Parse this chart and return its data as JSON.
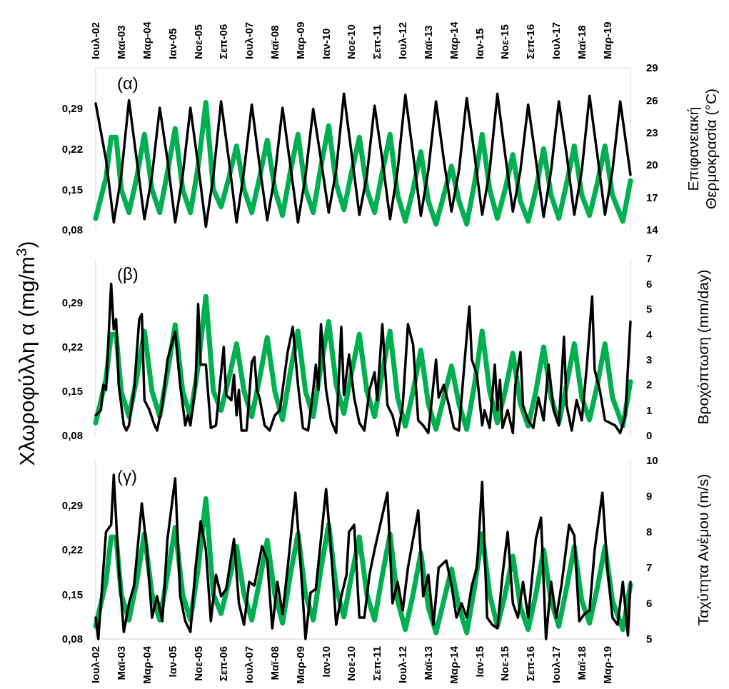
{
  "chart_data": [
    {
      "type": "line",
      "title": "(α)",
      "y2label": "Επιφανειακή Θερμοκρασία (°C)",
      "xlim": [
        "2002-07",
        "2019-12"
      ],
      "xticks": [
        {
          "value": "2002-07",
          "label": "Ιουλ-02"
        },
        {
          "value": "2003-05",
          "label": "Μαϊ-03"
        },
        {
          "value": "2004-03",
          "label": "Μαρ-04"
        },
        {
          "value": "2005-01",
          "label": "Ιαν-05"
        },
        {
          "value": "2005-11",
          "label": "Νοε-05"
        },
        {
          "value": "2006-09",
          "label": "Σεπ-06"
        },
        {
          "value": "2007-07",
          "label": "Ιουλ-07"
        },
        {
          "value": "2008-05",
          "label": "Μαϊ-08"
        },
        {
          "value": "2009-03",
          "label": "Μαρ-09"
        },
        {
          "value": "2010-01",
          "label": "Ιαν-10"
        },
        {
          "value": "2010-11",
          "label": "Νοε-10"
        },
        {
          "value": "2011-09",
          "label": "Σεπ-11"
        },
        {
          "value": "2012-07",
          "label": "Ιουλ-12"
        },
        {
          "value": "2013-05",
          "label": "Μαϊ-13"
        },
        {
          "value": "2014-03",
          "label": "Μαρ-14"
        },
        {
          "value": "2015-01",
          "label": "Ιαν-15"
        },
        {
          "value": "2015-11",
          "label": "Νοε-15"
        },
        {
          "value": "2016-09",
          "label": "Σεπ-16"
        },
        {
          "value": "2017-07",
          "label": "Ιουλ-17"
        },
        {
          "value": "2018-05",
          "label": "Μαϊ-18"
        },
        {
          "value": "2019-03",
          "label": "Μαρ-19"
        }
      ],
      "ylim": [
        0.08,
        0.36
      ],
      "yticks": [
        {
          "value": 0.08,
          "label": "0,08"
        },
        {
          "value": 0.15,
          "label": "0,15"
        },
        {
          "value": 0.22,
          "label": "0,22"
        },
        {
          "value": 0.29,
          "label": "0,29"
        }
      ],
      "y2lim": [
        14,
        29
      ],
      "y2ticks": [
        14,
        17,
        20,
        23,
        26,
        29
      ],
      "series": [
        {
          "color": "#00b050",
          "x": [
            "2002-07",
            "2002-11",
            "2003-01",
            "2003-03",
            "2003-05",
            "2003-08",
            "2003-11",
            "2004-02",
            "2004-05",
            "2004-08",
            "2004-11",
            "2005-02",
            "2005-05",
            "2005-08",
            "2005-11",
            "2006-02",
            "2006-05",
            "2006-08",
            "2006-11",
            "2007-02",
            "2007-05",
            "2007-08",
            "2007-11",
            "2008-02",
            "2008-05",
            "2008-08",
            "2008-11",
            "2009-02",
            "2009-05",
            "2009-08",
            "2009-11",
            "2010-02",
            "2010-05",
            "2010-08",
            "2010-11",
            "2011-02",
            "2011-05",
            "2011-08",
            "2011-11",
            "2012-02",
            "2012-05",
            "2012-08",
            "2012-11",
            "2013-02",
            "2013-05",
            "2013-08",
            "2013-11",
            "2014-02",
            "2014-05",
            "2014-08",
            "2014-11",
            "2015-02",
            "2015-05",
            "2015-08",
            "2015-11",
            "2016-02",
            "2016-05",
            "2016-08",
            "2016-11",
            "2017-02",
            "2017-05",
            "2017-08",
            "2017-11",
            "2018-02",
            "2018-05",
            "2018-08",
            "2018-11",
            "2019-02",
            "2019-05",
            "2019-09",
            "2019-12"
          ],
          "values": [
            0.1,
            0.17,
            0.24,
            0.24,
            0.15,
            0.11,
            0.17,
            0.245,
            0.15,
            0.11,
            0.18,
            0.255,
            0.15,
            0.11,
            0.19,
            0.3,
            0.15,
            0.12,
            0.17,
            0.225,
            0.15,
            0.11,
            0.17,
            0.235,
            0.15,
            0.105,
            0.18,
            0.245,
            0.15,
            0.11,
            0.19,
            0.26,
            0.16,
            0.115,
            0.18,
            0.24,
            0.15,
            0.11,
            0.18,
            0.245,
            0.14,
            0.095,
            0.15,
            0.215,
            0.13,
            0.09,
            0.14,
            0.19,
            0.13,
            0.09,
            0.16,
            0.245,
            0.15,
            0.1,
            0.15,
            0.21,
            0.13,
            0.095,
            0.15,
            0.22,
            0.14,
            0.1,
            0.16,
            0.225,
            0.14,
            0.105,
            0.16,
            0.225,
            0.14,
            0.095,
            0.165
          ]
        },
        {
          "color": "#000000",
          "axis": "y2",
          "x": [
            "2002-07",
            "2002-11",
            "2003-02",
            "2003-05",
            "2003-08",
            "2003-11",
            "2004-02",
            "2004-05",
            "2004-08",
            "2004-11",
            "2005-02",
            "2005-05",
            "2005-08",
            "2005-11",
            "2006-02",
            "2006-05",
            "2006-08",
            "2006-11",
            "2007-02",
            "2007-05",
            "2007-08",
            "2007-11",
            "2008-02",
            "2008-05",
            "2008-08",
            "2008-11",
            "2009-02",
            "2009-05",
            "2009-08",
            "2009-11",
            "2010-02",
            "2010-05",
            "2010-08",
            "2010-11",
            "2011-02",
            "2011-05",
            "2011-08",
            "2011-11",
            "2012-02",
            "2012-05",
            "2012-08",
            "2012-11",
            "2013-02",
            "2013-05",
            "2013-08",
            "2013-11",
            "2014-02",
            "2014-05",
            "2014-08",
            "2014-11",
            "2015-02",
            "2015-05",
            "2015-08",
            "2015-11",
            "2016-02",
            "2016-05",
            "2016-08",
            "2016-11",
            "2017-02",
            "2017-05",
            "2017-08",
            "2017-11",
            "2018-02",
            "2018-05",
            "2018-08",
            "2018-11",
            "2019-02",
            "2019-05",
            "2019-08",
            "2019-12"
          ],
          "values": [
            25.7,
            20.5,
            14.7,
            19,
            26.0,
            20.5,
            15.0,
            19,
            25.3,
            20.5,
            14.7,
            19,
            25.3,
            20,
            14.3,
            19,
            25.9,
            20.5,
            14.7,
            19.5,
            25.6,
            20,
            14.9,
            19,
            25.3,
            20,
            14.7,
            19,
            25.2,
            20.5,
            15.6,
            19.5,
            26.6,
            21,
            15.4,
            19,
            25.5,
            20.5,
            15.0,
            19.5,
            26.5,
            21,
            15.3,
            19.5,
            25.9,
            20.5,
            15.7,
            19.5,
            26.2,
            21,
            15.4,
            19.5,
            26.6,
            21,
            15.7,
            19.5,
            25.6,
            20.5,
            15.2,
            19.5,
            25.9,
            21,
            15.4,
            19.5,
            26.4,
            21,
            15.4,
            19.5,
            25.9,
            19.1
          ]
        }
      ]
    },
    {
      "type": "line",
      "title": "(β)",
      "ylabel": "Χλωροφύλλη α (mg/m$^{3}$)",
      "y2label": "Βροχόπτωση (mm/day)",
      "tick_labels": "y",
      "xlim": [
        "2002-07",
        "2019-12"
      ],
      "ylim": [
        0.08,
        0.36
      ],
      "yticks": [
        {
          "value": 0.08,
          "label": "0,08"
        },
        {
          "value": 0.15,
          "label": "0,15"
        },
        {
          "value": 0.22,
          "label": "0,22"
        },
        {
          "value": 0.29,
          "label": "0,29"
        }
      ],
      "y2lim": [
        0,
        7
      ],
      "y2ticks": [
        0,
        1,
        2,
        3,
        4,
        5,
        6,
        7
      ],
      "series": [
        {
          "color": "#00b050",
          "x": [
            "2002-07",
            "2002-11",
            "2003-01",
            "2003-03",
            "2003-05",
            "2003-08",
            "2003-11",
            "2004-02",
            "2004-05",
            "2004-08",
            "2004-11",
            "2005-02",
            "2005-05",
            "2005-08",
            "2005-11",
            "2006-02",
            "2006-05",
            "2006-08",
            "2006-11",
            "2007-02",
            "2007-05",
            "2007-08",
            "2007-11",
            "2008-02",
            "2008-05",
            "2008-08",
            "2008-11",
            "2009-02",
            "2009-05",
            "2009-08",
            "2009-11",
            "2010-02",
            "2010-05",
            "2010-08",
            "2010-11",
            "2011-02",
            "2011-05",
            "2011-08",
            "2011-11",
            "2012-02",
            "2012-05",
            "2012-08",
            "2012-11",
            "2013-02",
            "2013-05",
            "2013-08",
            "2013-11",
            "2014-02",
            "2014-05",
            "2014-08",
            "2014-11",
            "2015-02",
            "2015-05",
            "2015-08",
            "2015-11",
            "2016-02",
            "2016-05",
            "2016-08",
            "2016-11",
            "2017-02",
            "2017-05",
            "2017-08",
            "2017-11",
            "2018-02",
            "2018-05",
            "2018-08",
            "2018-11",
            "2019-02",
            "2019-05",
            "2019-09",
            "2019-12"
          ],
          "values": [
            0.1,
            0.17,
            0.24,
            0.24,
            0.15,
            0.11,
            0.17,
            0.245,
            0.15,
            0.11,
            0.18,
            0.255,
            0.15,
            0.11,
            0.19,
            0.3,
            0.15,
            0.12,
            0.17,
            0.225,
            0.15,
            0.11,
            0.17,
            0.235,
            0.15,
            0.105,
            0.18,
            0.245,
            0.15,
            0.11,
            0.19,
            0.26,
            0.16,
            0.115,
            0.18,
            0.24,
            0.15,
            0.11,
            0.18,
            0.245,
            0.14,
            0.095,
            0.15,
            0.215,
            0.13,
            0.09,
            0.14,
            0.19,
            0.13,
            0.09,
            0.16,
            0.245,
            0.15,
            0.1,
            0.15,
            0.21,
            0.13,
            0.095,
            0.15,
            0.22,
            0.14,
            0.1,
            0.16,
            0.225,
            0.14,
            0.105,
            0.16,
            0.225,
            0.14,
            0.095,
            0.165
          ]
        },
        {
          "color": "#000000",
          "axis": "y2",
          "x": [
            "2002-07",
            "2002-09",
            "2002-10",
            "2002-11",
            "2003-01",
            "2003-02",
            "2003-03",
            "2003-04",
            "2003-06",
            "2003-07",
            "2003-08",
            "2003-10",
            "2003-12",
            "2004-01",
            "2004-02",
            "2004-04",
            "2004-06",
            "2004-07",
            "2004-09",
            "2004-11",
            "2005-02",
            "2005-04",
            "2005-06",
            "2005-07",
            "2005-08",
            "2005-10",
            "2005-11",
            "2005-12",
            "2006-02",
            "2006-04",
            "2006-06",
            "2006-09",
            "2006-10",
            "2006-12",
            "2007-01",
            "2007-02",
            "2007-03",
            "2007-04",
            "2007-06",
            "2007-08",
            "2007-09",
            "2007-10",
            "2007-11",
            "2008-01",
            "2008-03",
            "2008-05",
            "2008-07",
            "2008-10",
            "2008-12",
            "2009-02",
            "2009-04",
            "2009-06",
            "2009-08",
            "2009-09",
            "2009-10",
            "2009-11",
            "2010-01",
            "2010-03",
            "2010-05",
            "2010-07",
            "2010-08",
            "2010-10",
            "2010-12",
            "2011-02",
            "2011-04",
            "2011-06",
            "2011-08",
            "2011-09",
            "2011-11",
            "2012-01",
            "2012-03",
            "2012-05",
            "2012-07",
            "2012-09",
            "2012-11",
            "2013-01",
            "2013-03",
            "2013-05",
            "2013-08",
            "2013-09",
            "2013-11",
            "2014-01",
            "2014-03",
            "2014-05",
            "2014-07",
            "2014-09",
            "2014-10",
            "2014-12",
            "2015-02",
            "2015-03",
            "2015-05",
            "2015-07",
            "2015-08",
            "2015-09",
            "2015-10",
            "2015-12",
            "2016-02",
            "2016-03",
            "2016-05",
            "2016-06",
            "2016-08",
            "2016-10",
            "2016-12",
            "2017-02",
            "2017-04",
            "2017-06",
            "2017-08",
            "2017-10",
            "2017-11",
            "2018-01",
            "2018-03",
            "2018-05",
            "2018-07",
            "2018-09",
            "2018-10",
            "2018-12",
            "2019-02",
            "2019-04",
            "2019-06",
            "2019-08",
            "2019-10",
            "2019-12"
          ],
          "values": [
            0.8,
            1.0,
            2.0,
            1.8,
            6.0,
            4.2,
            4.6,
            2.0,
            0.4,
            0.2,
            0.4,
            1.8,
            4.6,
            4.8,
            1.4,
            1.0,
            0.4,
            0.2,
            1.2,
            3.0,
            4.1,
            2.0,
            0.4,
            0.8,
            0.4,
            2.0,
            5.2,
            2.8,
            2.8,
            0.3,
            0.4,
            3.5,
            1.6,
            1.4,
            2.4,
            0.8,
            1.8,
            0.2,
            0.2,
            2.9,
            3.1,
            1.8,
            1.5,
            0.4,
            0.2,
            0.8,
            1.0,
            3.3,
            4.3,
            2.0,
            0.3,
            0.2,
            1.8,
            2.8,
            1.8,
            4.4,
            1.8,
            0.6,
            0.1,
            4.3,
            1.6,
            3.2,
            1.5,
            0.5,
            0.2,
            1.8,
            2.5,
            1.4,
            4.4,
            1.2,
            0.8,
            0.0,
            1.2,
            4.4,
            3.6,
            0.6,
            0.4,
            0.1,
            3.0,
            1.5,
            2.0,
            1.2,
            0.3,
            0.2,
            2.7,
            5.1,
            3.0,
            2.4,
            0.4,
            1.0,
            0.3,
            2.8,
            1.0,
            2.2,
            0.3,
            1.0,
            0.1,
            2.0,
            3.3,
            1.2,
            0.6,
            0.3,
            1.5,
            0.6,
            2.8,
            1.0,
            0.4,
            3.9,
            1.2,
            0.2,
            1.4,
            0.6,
            2.8,
            5.5,
            2.6,
            1.8,
            0.6,
            0.5,
            0.4,
            0.1,
            0.8,
            4.5
          ]
        }
      ]
    },
    {
      "type": "line",
      "title": "(γ)",
      "y2label": "Ταχύτητα Ανέμου (m/s)",
      "xlim": [
        "2002-07",
        "2019-12"
      ],
      "xticks": [
        {
          "value": "2002-07",
          "label": "Ιουλ-02"
        },
        {
          "value": "2003-05",
          "label": "Μαϊ-03"
        },
        {
          "value": "2004-03",
          "label": "Μαρ-04"
        },
        {
          "value": "2005-01",
          "label": "Ιαν-05"
        },
        {
          "value": "2005-11",
          "label": "Νοε-05"
        },
        {
          "value": "2006-09",
          "label": "Σεπ-06"
        },
        {
          "value": "2007-07",
          "label": "Ιουλ-07"
        },
        {
          "value": "2008-05",
          "label": "Μαϊ-08"
        },
        {
          "value": "2009-03",
          "label": "Μαρ-09"
        },
        {
          "value": "2010-01",
          "label": "Ιαν-10"
        },
        {
          "value": "2010-11",
          "label": "Νοε-10"
        },
        {
          "value": "2011-09",
          "label": "Σεπ-11"
        },
        {
          "value": "2012-07",
          "label": "Ιουλ-12"
        },
        {
          "value": "2013-05",
          "label": "Μαϊ-13"
        },
        {
          "value": "2014-03",
          "label": "Μαρ-14"
        },
        {
          "value": "2015-01",
          "label": "Ιαν-15"
        },
        {
          "value": "2015-11",
          "label": "Νοε-15"
        },
        {
          "value": "2016-09",
          "label": "Σεπ-16"
        },
        {
          "value": "2017-07",
          "label": "Ιουλ-17"
        },
        {
          "value": "2018-05",
          "label": "Μαϊ-18"
        },
        {
          "value": "2019-03",
          "label": "Μαρ-19"
        }
      ],
      "ylim": [
        0.08,
        0.36
      ],
      "yticks": [
        {
          "value": 0.08,
          "label": "0,08"
        },
        {
          "value": 0.15,
          "label": "0,15"
        },
        {
          "value": 0.22,
          "label": "0,22"
        },
        {
          "value": 0.29,
          "label": "0,29"
        }
      ],
      "y2lim": [
        5,
        10
      ],
      "y2ticks": [
        5,
        6,
        7,
        8,
        9,
        10
      ],
      "series": [
        {
          "color": "#00b050",
          "x": [
            "2002-07",
            "2002-11",
            "2003-01",
            "2003-03",
            "2003-05",
            "2003-08",
            "2003-11",
            "2004-02",
            "2004-05",
            "2004-08",
            "2004-11",
            "2005-02",
            "2005-05",
            "2005-08",
            "2005-11",
            "2006-02",
            "2006-05",
            "2006-08",
            "2006-11",
            "2007-02",
            "2007-05",
            "2007-08",
            "2007-11",
            "2008-02",
            "2008-05",
            "2008-08",
            "2008-11",
            "2009-02",
            "2009-05",
            "2009-08",
            "2009-11",
            "2010-02",
            "2010-05",
            "2010-08",
            "2010-11",
            "2011-02",
            "2011-05",
            "2011-08",
            "2011-11",
            "2012-02",
            "2012-05",
            "2012-08",
            "2012-11",
            "2013-02",
            "2013-05",
            "2013-08",
            "2013-11",
            "2014-02",
            "2014-05",
            "2014-08",
            "2014-11",
            "2015-02",
            "2015-05",
            "2015-08",
            "2015-11",
            "2016-02",
            "2016-05",
            "2016-08",
            "2016-11",
            "2017-02",
            "2017-05",
            "2017-08",
            "2017-11",
            "2018-02",
            "2018-05",
            "2018-08",
            "2018-11",
            "2019-02",
            "2019-05",
            "2019-09",
            "2019-12"
          ],
          "values": [
            0.1,
            0.17,
            0.24,
            0.24,
            0.15,
            0.11,
            0.17,
            0.245,
            0.15,
            0.11,
            0.18,
            0.255,
            0.15,
            0.11,
            0.19,
            0.3,
            0.15,
            0.12,
            0.17,
            0.225,
            0.15,
            0.11,
            0.17,
            0.235,
            0.15,
            0.105,
            0.18,
            0.245,
            0.15,
            0.11,
            0.19,
            0.26,
            0.16,
            0.115,
            0.18,
            0.24,
            0.15,
            0.11,
            0.18,
            0.245,
            0.14,
            0.095,
            0.15,
            0.215,
            0.13,
            0.09,
            0.14,
            0.19,
            0.13,
            0.09,
            0.16,
            0.245,
            0.15,
            0.1,
            0.15,
            0.21,
            0.13,
            0.095,
            0.15,
            0.22,
            0.14,
            0.1,
            0.16,
            0.225,
            0.14,
            0.105,
            0.16,
            0.225,
            0.14,
            0.095,
            0.165
          ]
        },
        {
          "color": "#000000",
          "axis": "y2",
          "x": [
            "2002-07",
            "2002-08",
            "2002-09",
            "2002-11",
            "2003-01",
            "2003-02",
            "2003-04",
            "2003-06",
            "2003-08",
            "2003-10",
            "2004-01",
            "2004-03",
            "2004-05",
            "2004-07",
            "2004-09",
            "2004-11",
            "2005-02",
            "2005-04",
            "2005-06",
            "2005-08",
            "2005-10",
            "2005-12",
            "2006-02",
            "2006-04",
            "2006-06",
            "2006-08",
            "2006-10",
            "2007-01",
            "2007-03",
            "2007-05",
            "2007-07",
            "2007-09",
            "2007-12",
            "2008-02",
            "2008-04",
            "2008-06",
            "2008-08",
            "2008-10",
            "2009-01",
            "2009-03",
            "2009-05",
            "2009-07",
            "2009-09",
            "2010-01",
            "2010-03",
            "2010-05",
            "2010-07",
            "2010-09",
            "2010-10",
            "2010-12",
            "2011-02",
            "2011-04",
            "2011-06",
            "2011-08",
            "2012-01",
            "2012-03",
            "2012-05",
            "2012-07",
            "2012-09",
            "2013-01",
            "2013-03",
            "2013-05",
            "2013-07",
            "2013-09",
            "2013-12",
            "2014-02",
            "2014-04",
            "2014-06",
            "2014-08",
            "2014-10",
            "2014-12",
            "2015-02",
            "2015-04",
            "2015-06",
            "2015-08",
            "2015-10",
            "2015-12",
            "2016-02",
            "2016-04",
            "2016-06",
            "2016-08",
            "2016-11",
            "2017-01",
            "2017-03",
            "2017-05",
            "2017-07",
            "2017-09",
            "2017-12",
            "2018-02",
            "2018-04",
            "2018-06",
            "2018-08",
            "2018-10",
            "2019-01",
            "2019-03",
            "2019-05",
            "2019-07",
            "2019-09",
            "2019-11",
            "2019-12"
          ],
          "values": [
            5.6,
            5.0,
            6.0,
            8.0,
            8.2,
            9.6,
            7.0,
            5.2,
            6.0,
            6.5,
            8.8,
            7.5,
            5.6,
            6.2,
            5.5,
            7.8,
            9.5,
            6.2,
            5.5,
            5.2,
            7.0,
            8.3,
            7.5,
            5.5,
            6.8,
            6.2,
            6.4,
            7.8,
            6.0,
            5.4,
            6.6,
            6.5,
            7.6,
            7.2,
            5.3,
            6.6,
            5.7,
            7.0,
            9.1,
            7.2,
            5.0,
            6.3,
            6.4,
            9.2,
            7.5,
            5.4,
            6.2,
            6.8,
            8.0,
            8.2,
            5.6,
            5.6,
            6.8,
            7.5,
            9.1,
            6.0,
            6.6,
            5.8,
            7.0,
            8.6,
            6.2,
            6.8,
            5.4,
            7.0,
            7.2,
            6.5,
            5.6,
            6.0,
            5.6,
            6.5,
            7.0,
            9.4,
            5.6,
            5.4,
            5.3,
            6.8,
            8.0,
            6.0,
            5.6,
            6.6,
            5.6,
            7.8,
            8.4,
            5.0,
            6.6,
            5.6,
            6.5,
            8.2,
            7.9,
            5.5,
            5.7,
            5.8,
            7.5,
            9.1,
            7.0,
            5.6,
            5.4,
            6.6,
            5.1,
            6.6
          ]
        }
      ]
    }
  ]
}
